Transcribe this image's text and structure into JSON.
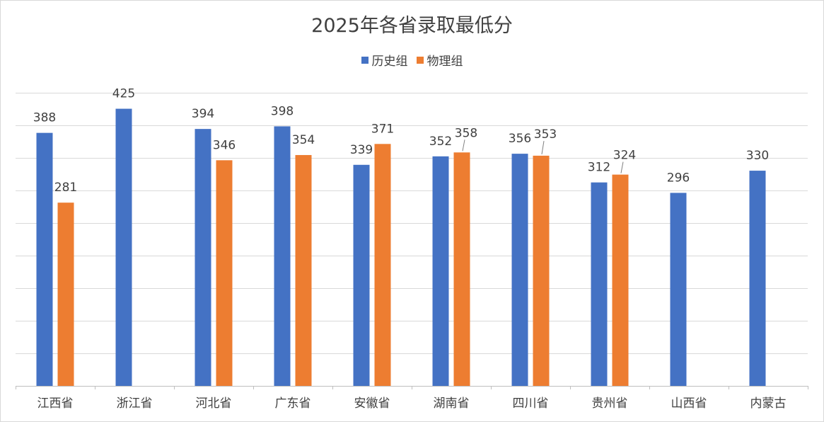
{
  "chart_data": {
    "type": "bar",
    "title": "2025年各省录取最低分",
    "xlabel": "",
    "ylabel": "",
    "categories": [
      "江西省",
      "浙江省",
      "河北省",
      "广东省",
      "安徽省",
      "湖南省",
      "四川省",
      "贵州省",
      "山西省",
      "内蒙古"
    ],
    "series": [
      {
        "name": "历史组",
        "color": "#4472C4",
        "values": [
          388,
          425,
          394,
          398,
          339,
          352,
          356,
          312,
          296,
          330
        ]
      },
      {
        "name": "物理组",
        "color": "#ED7D31",
        "values": [
          281,
          null,
          346,
          354,
          371,
          358,
          353,
          324,
          null,
          null
        ]
      }
    ],
    "ylim": [
      0,
      450
    ],
    "grid": true,
    "legend_position": "top",
    "data_labels": true
  }
}
